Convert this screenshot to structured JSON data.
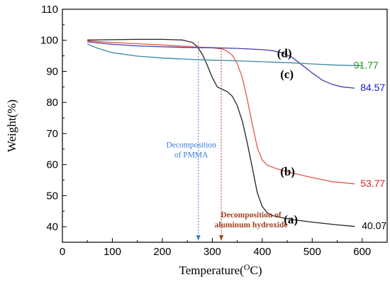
{
  "chart_data": {
    "type": "line",
    "xlabel": "Temperature(",
    "xlabel_unit": "O",
    "xlabel_unit_suffix": "C)",
    "ylabel": "Weight(%)",
    "xlim": [
      0,
      650
    ],
    "ylim": [
      35,
      110
    ],
    "xticks": [
      "0",
      "100",
      "200",
      "300",
      "400",
      "500",
      "600"
    ],
    "yticks": [
      "40",
      "50",
      "60",
      "70",
      "80",
      "90",
      "100",
      "110"
    ],
    "grid": false,
    "series": [
      {
        "name": "(a)",
        "color": "#222222",
        "end_value": "40.07",
        "end_value_color": "#000000",
        "points": [
          [
            50,
            100.1
          ],
          [
            100,
            100.2
          ],
          [
            150,
            100.3
          ],
          [
            200,
            100.3
          ],
          [
            240,
            100.1
          ],
          [
            260,
            99.3
          ],
          [
            270,
            98.0
          ],
          [
            280,
            95.5
          ],
          [
            290,
            92.0
          ],
          [
            300,
            88.0
          ],
          [
            310,
            85.0
          ],
          [
            320,
            84.2
          ],
          [
            330,
            83.5
          ],
          [
            340,
            82.0
          ],
          [
            350,
            79.0
          ],
          [
            360,
            74.0
          ],
          [
            370,
            67.0
          ],
          [
            380,
            59.0
          ],
          [
            390,
            51.0
          ],
          [
            400,
            46.5
          ],
          [
            410,
            44.5
          ],
          [
            420,
            43.6
          ],
          [
            440,
            42.9
          ],
          [
            460,
            42.3
          ],
          [
            500,
            41.5
          ],
          [
            550,
            40.6
          ],
          [
            585,
            40.1
          ]
        ]
      },
      {
        "name": "(b)",
        "color": "#e0594a",
        "end_value": "53.77",
        "end_value_color": "#d42020",
        "points": [
          [
            50,
            99.8
          ],
          [
            100,
            99.3
          ],
          [
            150,
            98.9
          ],
          [
            200,
            98.5
          ],
          [
            250,
            98.0
          ],
          [
            300,
            97.6
          ],
          [
            320,
            97.2
          ],
          [
            330,
            96.5
          ],
          [
            340,
            95.2
          ],
          [
            350,
            92.5
          ],
          [
            360,
            88.0
          ],
          [
            370,
            81.0
          ],
          [
            380,
            73.0
          ],
          [
            390,
            65.5
          ],
          [
            400,
            61.5
          ],
          [
            410,
            59.8
          ],
          [
            430,
            58.6
          ],
          [
            460,
            57.3
          ],
          [
            500,
            55.8
          ],
          [
            540,
            54.5
          ],
          [
            585,
            53.8
          ]
        ]
      },
      {
        "name": "(c)",
        "color": "#4a3ab0",
        "end_value": "84.57",
        "end_value_color": "#1a1ad0",
        "points": [
          [
            50,
            99.5
          ],
          [
            100,
            98.7
          ],
          [
            150,
            98.2
          ],
          [
            200,
            97.9
          ],
          [
            250,
            97.7
          ],
          [
            300,
            97.6
          ],
          [
            350,
            97.4
          ],
          [
            400,
            97.0
          ],
          [
            420,
            96.7
          ],
          [
            440,
            96.0
          ],
          [
            460,
            94.5
          ],
          [
            480,
            92.0
          ],
          [
            500,
            89.5
          ],
          [
            520,
            87.2
          ],
          [
            540,
            85.8
          ],
          [
            560,
            85.0
          ],
          [
            585,
            84.6
          ]
        ]
      },
      {
        "name": "(d)",
        "color": "#3a8aa0",
        "end_value": "91.77",
        "end_value_color": "#2a9a1a",
        "points": [
          [
            50,
            98.8
          ],
          [
            70,
            97.5
          ],
          [
            100,
            96.0
          ],
          [
            150,
            94.9
          ],
          [
            200,
            94.3
          ],
          [
            250,
            93.9
          ],
          [
            300,
            93.6
          ],
          [
            350,
            93.4
          ],
          [
            400,
            93.1
          ],
          [
            450,
            92.8
          ],
          [
            500,
            92.4
          ],
          [
            550,
            92.0
          ],
          [
            600,
            91.8
          ]
        ]
      }
    ],
    "annotations": [
      {
        "text": [
          "Decomposition",
          "of PMMA"
        ],
        "color": "#3a7ad8",
        "arrow_x": 272,
        "arrow_from_y": 99.5
      },
      {
        "text": [
          "Decomposition of",
          "aluminum hydroxide"
        ],
        "color": "#a04020",
        "arrow_x": 318,
        "arrow_from_y": 97.5
      }
    ]
  }
}
